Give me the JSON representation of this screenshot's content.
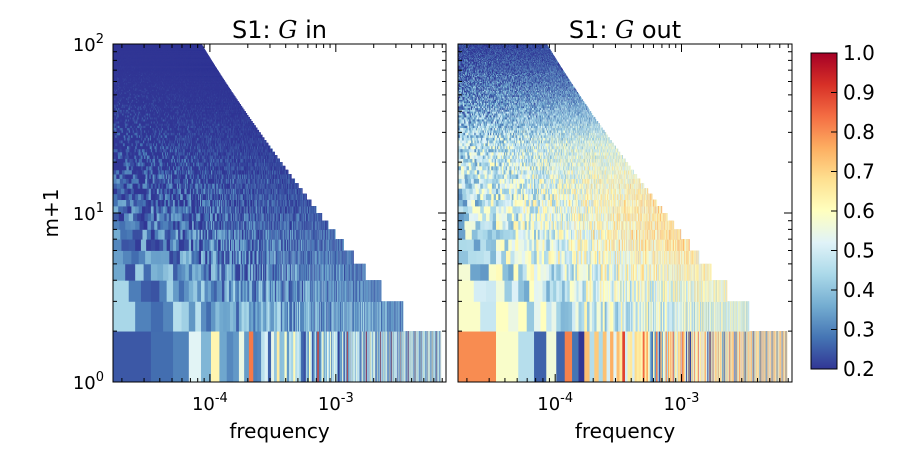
{
  "chart_data": [
    {
      "type": "heatmap",
      "title_prefix": "S1: ",
      "title_var": "G",
      "title_suffix": " in",
      "xlabel": "frequency",
      "ylabel": "m+1",
      "x_scale": "log",
      "y_scale": "log",
      "xlim": [
        1.7e-05,
        0.0075
      ],
      "ylim": [
        1,
        100
      ],
      "x_ticks": [
        {
          "value": 0.0001,
          "base": "10",
          "exp": "-4"
        },
        {
          "value": 0.001,
          "base": "10",
          "exp": "-3"
        }
      ],
      "y_ticks": [
        {
          "value": 1,
          "base": "10",
          "exp": "0"
        },
        {
          "value": 10,
          "base": "10",
          "exp": "1"
        },
        {
          "value": 100,
          "base": "10",
          "exp": "2"
        }
      ],
      "value_trend": "low coherence overall; moderate values at low m and low frequency",
      "row1_values": [
        0.22,
        0.3,
        0.28,
        0.45,
        0.35,
        0.6,
        0.4,
        0.25,
        0.3,
        0.5,
        0.3,
        0.85,
        0.25,
        0.35,
        0.45,
        0.55,
        0.3,
        0.5,
        0.35,
        0.6,
        0.45,
        0.4,
        0.55,
        0.35,
        0.5,
        0.45,
        0.55,
        0.4,
        0.5,
        0.45
      ]
    },
    {
      "type": "heatmap",
      "title_prefix": "S1: ",
      "title_var": "G",
      "title_suffix": " out",
      "xlabel": "frequency",
      "ylabel": "",
      "x_scale": "log",
      "y_scale": "log",
      "xlim": [
        1.7e-05,
        0.0075
      ],
      "ylim": [
        1,
        100
      ],
      "x_ticks": [
        {
          "value": 0.0001,
          "base": "10",
          "exp": "-4"
        },
        {
          "value": 0.001,
          "base": "10",
          "exp": "-3"
        }
      ],
      "value_trend": "higher coherence at mid m and high frequency; strong values at m+1 = 1",
      "row1_values": [
        0.78,
        0.6,
        0.42,
        0.25,
        0.55,
        0.3,
        0.75,
        0.35,
        0.22,
        0.7,
        0.4,
        0.65,
        0.5,
        0.8,
        0.45,
        0.7,
        0.55,
        0.75,
        0.6,
        0.85,
        0.5,
        0.7,
        0.65,
        0.45,
        0.75,
        0.6,
        0.7,
        0.55,
        0.8,
        0.65
      ]
    }
  ],
  "colorbar": {
    "min": 0.2,
    "max": 1.0,
    "colormap": "RdYlBu_r",
    "ticks": [
      "0.2",
      "0.3",
      "0.4",
      "0.5",
      "0.6",
      "0.7",
      "0.8",
      "0.9",
      "1.0"
    ]
  }
}
